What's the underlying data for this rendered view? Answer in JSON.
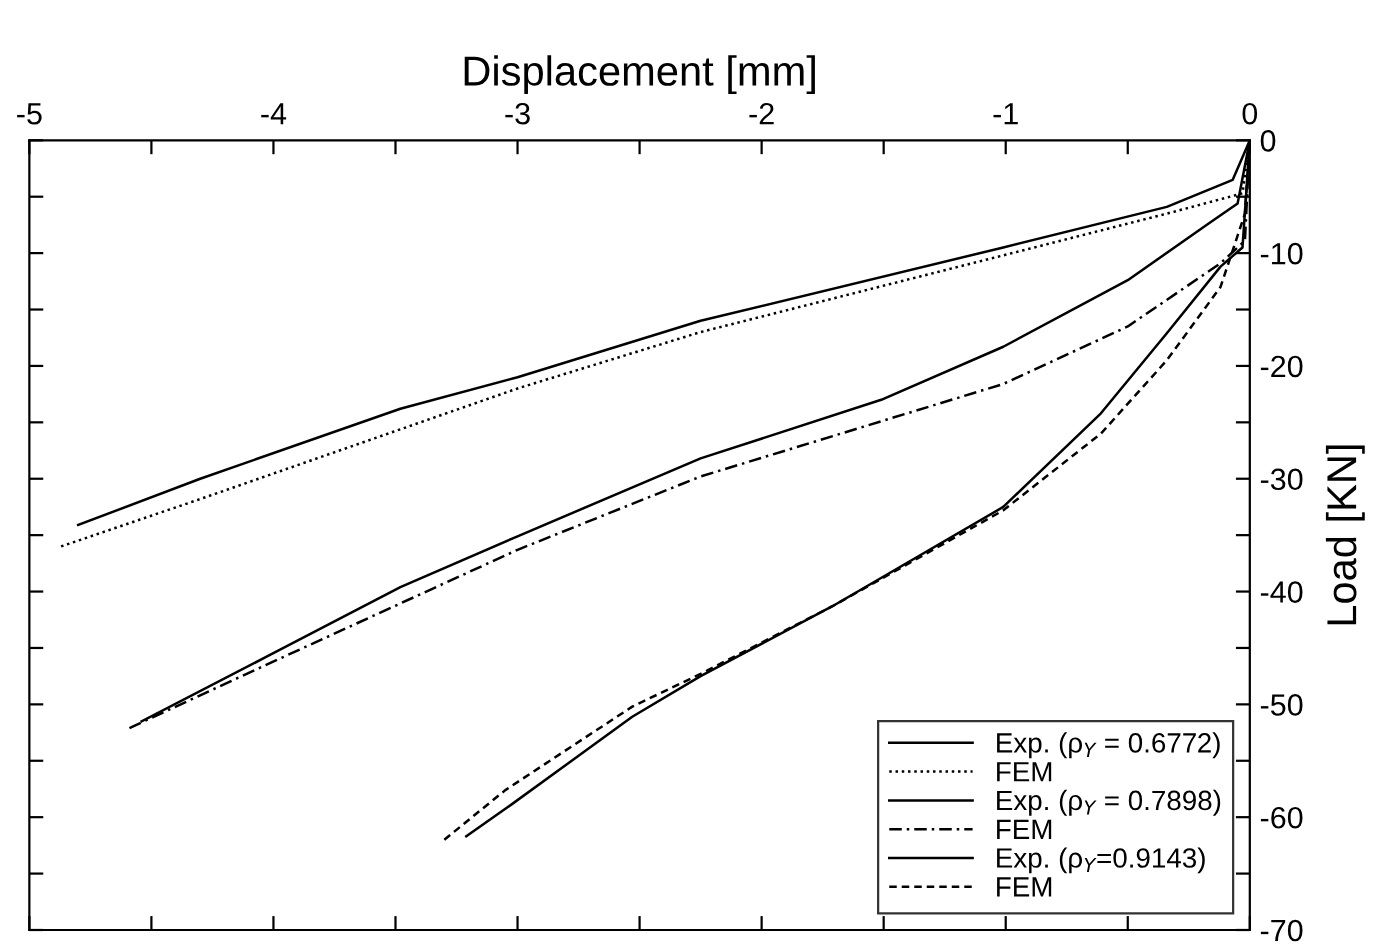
{
  "chart_data": {
    "type": "line",
    "xlabel": "Displacement [mm]",
    "ylabel": "Load [KN]",
    "xlim": [
      -5,
      0
    ],
    "ylim": [
      -70,
      0
    ],
    "xticks": [
      -5,
      {
        "value": -4.5,
        "label": null
      },
      -4,
      {
        "value": -3.5,
        "label": null
      },
      -3,
      {
        "value": -2.5,
        "label": null
      },
      -2,
      {
        "value": -1.5,
        "label": null
      },
      -1,
      {
        "value": -0.5,
        "label": null
      },
      0
    ],
    "yticks": [
      0,
      {
        "value": -5,
        "label": null
      },
      -10,
      {
        "value": -15,
        "label": null
      },
      -20,
      {
        "value": -25,
        "label": null
      },
      -30,
      {
        "value": -35,
        "label": null
      },
      -40,
      {
        "value": -45,
        "label": null
      },
      -50,
      {
        "value": -55,
        "label": null
      },
      -60,
      {
        "value": -65,
        "label": null
      },
      -70
    ],
    "grid": false,
    "legend": "bottom right",
    "marker": "none",
    "series": [
      {
        "name": "Exp. (ρ$_{Y}$ = 0.6772)",
        "color": "#000000",
        "line_style": "solid",
        "x": [
          -4.8,
          -4.3,
          -3.48,
          -3.0,
          -2.25,
          -1.01,
          -0.34,
          -0.07,
          0
        ],
        "values": [
          -34.1,
          -30.0,
          -23.8,
          -21.0,
          -16.0,
          -9.5,
          -5.9,
          -3.5,
          0
        ]
      },
      {
        "name": "FEM",
        "color": "#000000",
        "line_style": "dotted",
        "x": [
          -4.87,
          -4.3,
          -3.0,
          -2.25,
          -1.01,
          -0.34,
          -0.03,
          0
        ],
        "values": [
          -36.0,
          -31.8,
          -22.0,
          -17.0,
          -10.2,
          -6.5,
          -4.7,
          0
        ]
      },
      {
        "name": "Exp. (ρ$_{Y}$ = 0.7898)",
        "color": "#000000",
        "line_style": "solid",
        "x": [
          -4.54,
          -4.03,
          -3.48,
          -3.0,
          -2.25,
          -1.51,
          -1.01,
          -0.5,
          -0.17,
          -0.05,
          0
        ],
        "values": [
          -51.5,
          -45.8,
          -39.6,
          -35.1,
          -28.2,
          -23.0,
          -18.3,
          -12.4,
          -7.4,
          -5.6,
          0
        ]
      },
      {
        "name": "FEM",
        "color": "#000000",
        "line_style": "dashdot",
        "x": [
          -4.59,
          -4.03,
          -3.0,
          -2.25,
          -1.01,
          -0.5,
          -0.12,
          -0.02,
          0
        ],
        "values": [
          -52.1,
          -46.5,
          -36.3,
          -29.8,
          -21.6,
          -16.5,
          -10.9,
          -8.9,
          0
        ]
      },
      {
        "name": "Exp. (ρ$_{Y}$=0.9143)",
        "color": "#000000",
        "line_style": "solid",
        "x": [
          -3.21,
          -3.02,
          -2.53,
          -2.25,
          -1.71,
          -1.01,
          -0.61,
          -0.34,
          -0.12,
          -0.03,
          0
        ],
        "values": [
          -61.7,
          -58.8,
          -51.1,
          -47.5,
          -41.3,
          -32.5,
          -24.2,
          -17.1,
          -11.2,
          -9.5,
          0
        ]
      },
      {
        "name": "FEM",
        "color": "#000000",
        "line_style": "dashed",
        "x": [
          -3.3,
          -3.05,
          -2.53,
          -2.25,
          -1.71,
          -1.01,
          -0.61,
          -0.34,
          -0.12,
          -0.02,
          0
        ],
        "values": [
          -62.0,
          -57.6,
          -50.2,
          -47.3,
          -41.3,
          -32.8,
          -26.0,
          -19.5,
          -13.0,
          -6.5,
          0
        ]
      }
    ]
  }
}
